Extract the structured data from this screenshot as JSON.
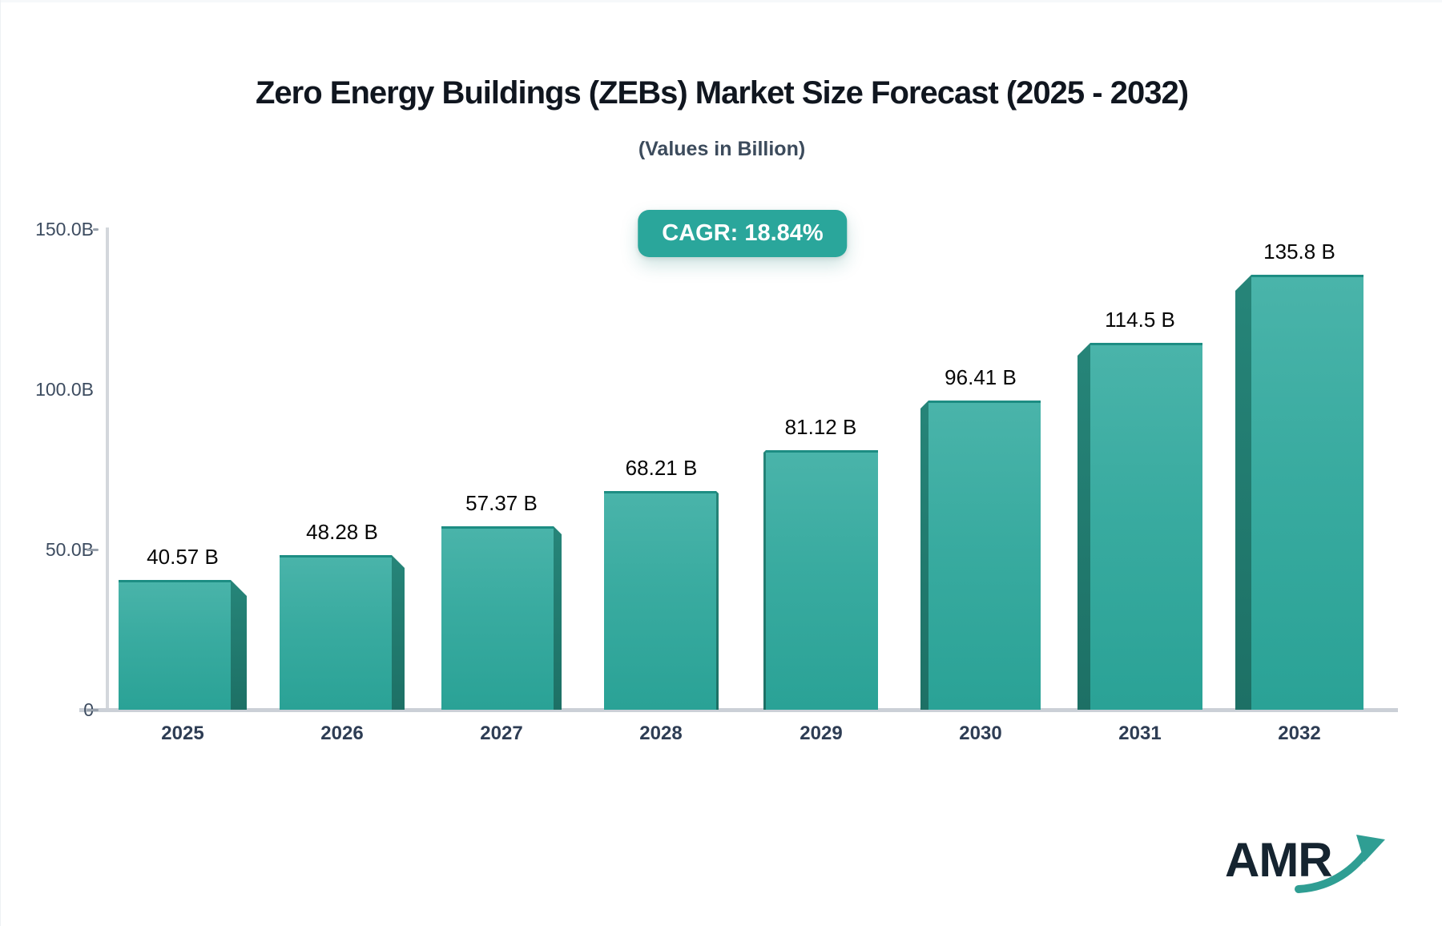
{
  "header": {
    "title": "Zero Energy Buildings (ZEBs) Market Size Forecast (2025 - 2032)",
    "subtitle": "(Values in Billion)",
    "cagr_label": "CAGR: 18.84%"
  },
  "chart_data": {
    "type": "bar",
    "title": "Zero Energy Buildings (ZEBs) Market Size Forecast (2025 - 2032)",
    "subtitle": "(Values in Billion)",
    "cagr_pct": 18.84,
    "categories": [
      "2025",
      "2026",
      "2027",
      "2028",
      "2029",
      "2030",
      "2031",
      "2032"
    ],
    "values": [
      40.57,
      48.28,
      57.37,
      68.21,
      81.12,
      96.41,
      114.5,
      135.8
    ],
    "value_labels": [
      "40.57 B",
      "48.28 B",
      "57.37 B",
      "68.21 B",
      "81.12 B",
      "96.41 B",
      "114.5 B",
      "135.8 B"
    ],
    "unit": "Billion USD",
    "xlabel": "",
    "ylabel": "",
    "ylim": [
      0,
      150
    ],
    "y_ticks": [
      {
        "value": 150,
        "label": "150.0B"
      },
      {
        "value": 100,
        "label": "100.0B"
      },
      {
        "value": 50,
        "label": "50.0B"
      },
      {
        "value": 0,
        "label": "0"
      }
    ],
    "grid": false,
    "legend": null,
    "style": "3d-teal-bars"
  },
  "colors": {
    "accent_teal": "#2aa69b",
    "bar_face_top": "#4ab4aa",
    "bar_face_bottom": "#2aa296",
    "bar_side_dark": "#1f7b71",
    "axis_line": "#cdd1d8",
    "label_slate": "#2e3d54",
    "value_label": "#070707"
  },
  "logo": {
    "text": "AMR"
  }
}
